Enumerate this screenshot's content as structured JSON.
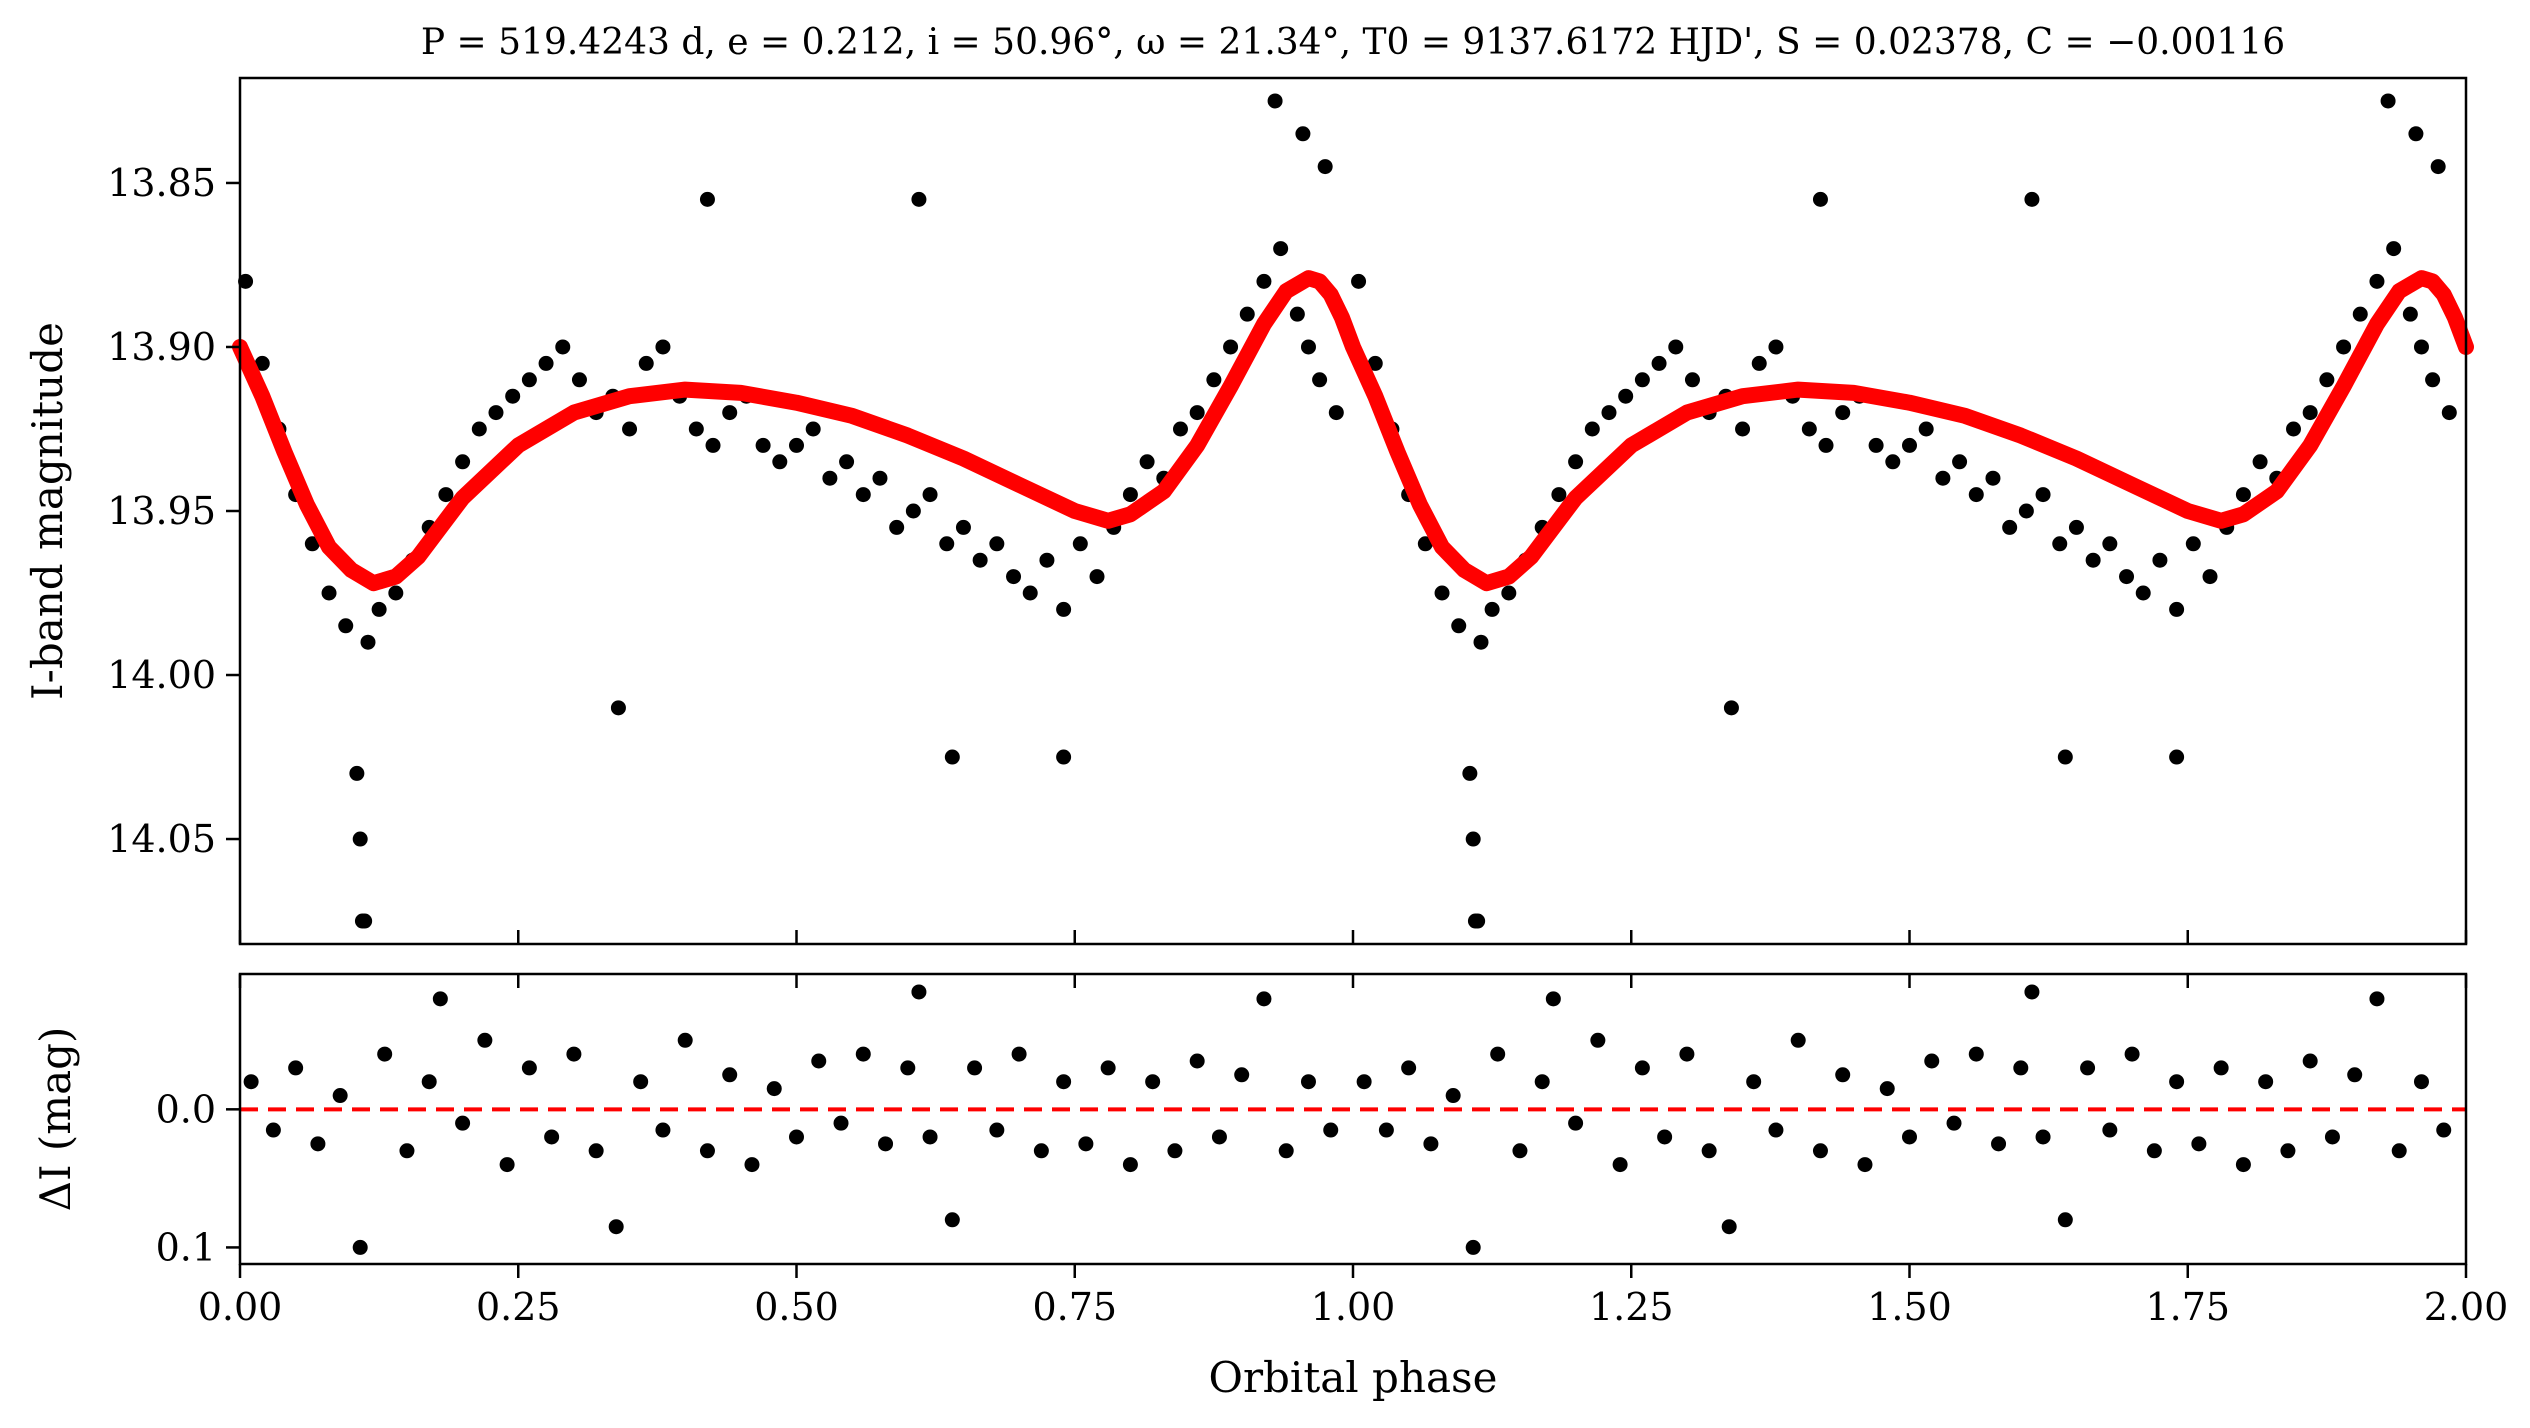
{
  "chart_data": [
    {
      "type": "scatter",
      "panel": "top",
      "title": "P = 519.4243 d, e = 0.212, i = 50.96°, ω = 21.34°, T0 = 9137.6172 HJD', S = 0.02378, C = −0.00116",
      "ylabel": "I-band magnitude",
      "xlim": [
        0.0,
        2.0
      ],
      "ylim": [
        14.082,
        13.818
      ],
      "y_inverted": true,
      "yticks": [
        13.85,
        13.9,
        13.95,
        14.0,
        14.05
      ],
      "ytick_labels": [
        "13.85",
        "13.90",
        "13.95",
        "14.00",
        "14.05"
      ],
      "grid": false,
      "series": [
        {
          "kind": "points",
          "color": "#000000",
          "description_x": "orbital phase 0–2 (each point repeated at phase + 1)",
          "x": [
            0.005,
            0.02,
            0.035,
            0.05,
            0.065,
            0.08,
            0.095,
            0.105,
            0.11,
            0.115,
            0.125,
            0.14,
            0.155,
            0.17,
            0.185,
            0.2,
            0.215,
            0.23,
            0.245,
            0.26,
            0.275,
            0.29,
            0.305,
            0.32,
            0.335,
            0.35,
            0.365,
            0.38,
            0.395,
            0.41,
            0.425,
            0.44,
            0.455,
            0.47,
            0.485,
            0.5,
            0.515,
            0.53,
            0.545,
            0.56,
            0.575,
            0.59,
            0.605,
            0.62,
            0.635,
            0.65,
            0.665,
            0.68,
            0.695,
            0.71,
            0.725,
            0.74,
            0.755,
            0.77,
            0.785,
            0.8,
            0.815,
            0.83,
            0.845,
            0.86,
            0.875,
            0.89,
            0.905,
            0.92,
            0.935,
            0.95,
            0.96,
            0.97,
            0.985,
            0.93,
            0.955,
            0.975,
            0.108,
            0.112,
            0.61,
            0.34,
            0.64,
            0.74,
            0.42
          ],
          "y": [
            13.88,
            13.905,
            13.925,
            13.945,
            13.96,
            13.975,
            13.985,
            14.03,
            14.075,
            13.99,
            13.98,
            13.975,
            13.965,
            13.955,
            13.945,
            13.935,
            13.925,
            13.92,
            13.915,
            13.91,
            13.905,
            13.9,
            13.91,
            13.92,
            13.915,
            13.925,
            13.905,
            13.9,
            13.915,
            13.925,
            13.93,
            13.92,
            13.915,
            13.93,
            13.935,
            13.93,
            13.925,
            13.94,
            13.935,
            13.945,
            13.94,
            13.955,
            13.95,
            13.945,
            13.96,
            13.955,
            13.965,
            13.96,
            13.97,
            13.975,
            13.965,
            13.98,
            13.96,
            13.97,
            13.955,
            13.945,
            13.935,
            13.94,
            13.925,
            13.92,
            13.91,
            13.9,
            13.89,
            13.88,
            13.87,
            13.89,
            13.9,
            13.91,
            13.92,
            13.825,
            13.835,
            13.845,
            14.05,
            14.075,
            13.855,
            14.01,
            14.025,
            14.025,
            13.855
          ]
        },
        {
          "kind": "line",
          "name": "",
          "color": "#ff0000",
          "x": [
            0.0,
            0.02,
            0.04,
            0.06,
            0.08,
            0.1,
            0.12,
            0.14,
            0.16,
            0.18,
            0.2,
            0.25,
            0.3,
            0.35,
            0.4,
            0.45,
            0.5,
            0.55,
            0.6,
            0.65,
            0.7,
            0.75,
            0.78,
            0.8,
            0.83,
            0.86,
            0.89,
            0.92,
            0.94,
            0.96,
            0.97,
            0.98,
            0.99,
            1.0,
            1.02,
            1.04,
            1.06,
            1.08,
            1.1,
            1.12,
            1.14,
            1.16,
            1.18,
            1.2,
            1.25,
            1.3,
            1.35,
            1.4,
            1.45,
            1.5,
            1.55,
            1.6,
            1.65,
            1.7,
            1.75,
            1.78,
            1.8,
            1.83,
            1.86,
            1.89,
            1.92,
            1.94,
            1.96,
            1.97,
            1.98,
            1.99,
            2.0
          ],
          "y": [
            13.9,
            13.915,
            13.932,
            13.948,
            13.961,
            13.968,
            13.972,
            13.97,
            13.964,
            13.955,
            13.946,
            13.93,
            13.92,
            13.915,
            13.913,
            13.914,
            13.917,
            13.921,
            13.927,
            13.934,
            13.942,
            13.95,
            13.953,
            13.951,
            13.944,
            13.93,
            13.912,
            13.893,
            13.883,
            13.879,
            13.88,
            13.884,
            13.891,
            13.9,
            13.915,
            13.932,
            13.948,
            13.961,
            13.968,
            13.972,
            13.97,
            13.964,
            13.955,
            13.946,
            13.93,
            13.92,
            13.915,
            13.913,
            13.914,
            13.917,
            13.921,
            13.927,
            13.934,
            13.942,
            13.95,
            13.953,
            13.951,
            13.944,
            13.93,
            13.912,
            13.893,
            13.883,
            13.879,
            13.88,
            13.884,
            13.891,
            13.9
          ]
        }
      ]
    },
    {
      "type": "scatter",
      "panel": "bottom",
      "ylabel": "ΔI (mag)",
      "xlabel": "Orbital phase",
      "xlim": [
        0.0,
        2.0
      ],
      "ylim": [
        0.112,
        -0.098
      ],
      "y_inverted": true,
      "xticks": [
        0.0,
        0.25,
        0.5,
        0.75,
        1.0,
        1.25,
        1.5,
        1.75,
        2.0
      ],
      "xtick_labels": [
        "0.00",
        "0.25",
        "0.50",
        "0.75",
        "1.00",
        "1.25",
        "1.50",
        "1.75",
        "2.00"
      ],
      "yticks": [
        0.0,
        0.1
      ],
      "ytick_labels": [
        "0.0",
        "0.1"
      ],
      "zero_line": {
        "y": 0.0,
        "color": "#ff0000",
        "style": "dashed"
      },
      "grid": false,
      "series": [
        {
          "kind": "points",
          "color": "#000000",
          "x": [
            0.01,
            0.03,
            0.05,
            0.07,
            0.09,
            0.108,
            0.13,
            0.15,
            0.17,
            0.18,
            0.2,
            0.22,
            0.24,
            0.26,
            0.28,
            0.3,
            0.32,
            0.338,
            0.36,
            0.38,
            0.4,
            0.42,
            0.44,
            0.46,
            0.48,
            0.5,
            0.52,
            0.54,
            0.56,
            0.58,
            0.6,
            0.61,
            0.62,
            0.64,
            0.66,
            0.68,
            0.7,
            0.72,
            0.74,
            0.76,
            0.78,
            0.8,
            0.82,
            0.84,
            0.86,
            0.88,
            0.9,
            0.92,
            0.94,
            0.96,
            0.98
          ],
          "y": [
            -0.02,
            0.015,
            -0.03,
            0.025,
            -0.01,
            0.1,
            -0.04,
            0.03,
            -0.02,
            -0.08,
            0.01,
            -0.05,
            0.04,
            -0.03,
            0.02,
            -0.04,
            0.03,
            0.085,
            -0.02,
            0.015,
            -0.05,
            0.03,
            -0.025,
            0.04,
            -0.015,
            0.02,
            -0.035,
            0.01,
            -0.04,
            0.025,
            -0.03,
            -0.085,
            0.02,
            0.08,
            -0.03,
            0.015,
            -0.04,
            0.03,
            -0.02,
            0.025,
            -0.03,
            0.04,
            -0.02,
            0.03,
            -0.035,
            0.02,
            -0.025,
            -0.08,
            0.03,
            -0.02,
            0.015
          ]
        }
      ]
    }
  ]
}
